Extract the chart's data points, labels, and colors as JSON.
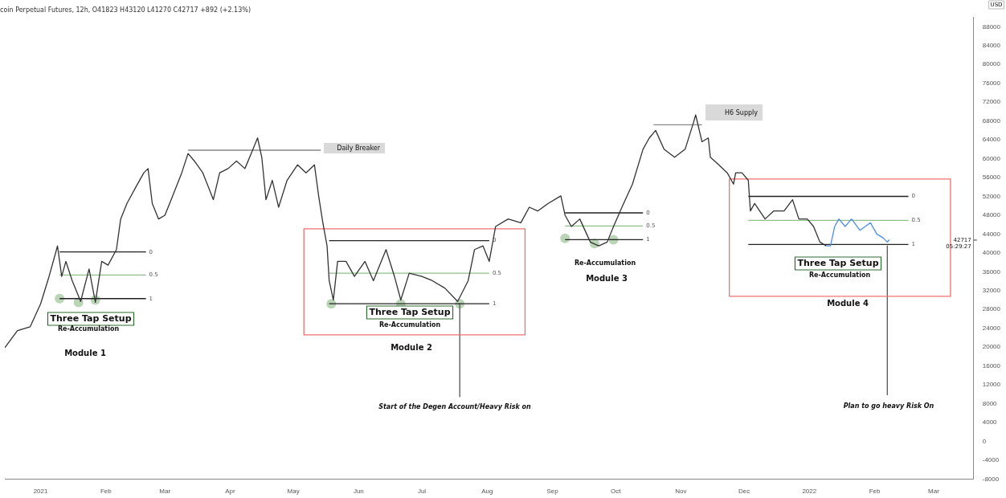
{
  "chart_data": {
    "type": "line",
    "title": "coin Perpetual Futures, 12h, O41823 H43120 L41270 C42717 +892 (+2.13%)",
    "xlim": [
      "2020-12-15",
      "2022-03-20"
    ],
    "xticks": [
      {
        "value": "2021-01-01",
        "label": "2021"
      },
      {
        "value": "2021-02-01",
        "label": "Feb"
      },
      {
        "value": "2021-03-01",
        "label": "Mar"
      },
      {
        "value": "2021-04-01",
        "label": "Apr"
      },
      {
        "value": "2021-05-01",
        "label": "May"
      },
      {
        "value": "2021-06-01",
        "label": "Jun"
      },
      {
        "value": "2021-07-01",
        "label": "Jul"
      },
      {
        "value": "2021-08-01",
        "label": "Aug"
      },
      {
        "value": "2021-09-01",
        "label": "Sep"
      },
      {
        "value": "2021-10-01",
        "label": "Oct"
      },
      {
        "value": "2021-11-01",
        "label": "Nov"
      },
      {
        "value": "2021-12-01",
        "label": "Dec"
      },
      {
        "value": "2022-01-01",
        "label": "2022"
      },
      {
        "value": "2022-02-01",
        "label": "Feb"
      },
      {
        "value": "2022-03-01",
        "label": "Mar"
      }
    ],
    "ylim": [
      -8000,
      90000
    ],
    "yticks": [
      -8000,
      -4000,
      0,
      4000,
      8000,
      12000,
      16000,
      20000,
      24000,
      28000,
      32000,
      36000,
      40000,
      44000,
      48000,
      52000,
      56000,
      60000,
      64000,
      68000,
      72000,
      76000,
      80000,
      84000,
      88000
    ],
    "grid": false,
    "legend": false,
    "marker": "none",
    "line_style": "solid",
    "series": [
      {
        "color": "#333333",
        "x": [
          "2020-12-15",
          "2020-12-21",
          "2020-12-27",
          "2021-01-01",
          "2021-01-05",
          "2021-01-08",
          "2021-01-09",
          "2021-01-11",
          "2021-01-13",
          "2021-01-16",
          "2021-01-20",
          "2021-01-24",
          "2021-01-27",
          "2021-01-30",
          "2021-02-02",
          "2021-02-06",
          "2021-02-08",
          "2021-02-11",
          "2021-02-15",
          "2021-02-19",
          "2021-02-21",
          "2021-02-23",
          "2021-02-26",
          "2021-03-01",
          "2021-03-04",
          "2021-03-09",
          "2021-03-12",
          "2021-03-15",
          "2021-03-19",
          "2021-03-24",
          "2021-03-27",
          "2021-03-31",
          "2021-04-04",
          "2021-04-08",
          "2021-04-11",
          "2021-04-14",
          "2021-04-16",
          "2021-04-18",
          "2021-04-21",
          "2021-04-24",
          "2021-04-28",
          "2021-05-03",
          "2021-05-07",
          "2021-05-11",
          "2021-05-13",
          "2021-05-15",
          "2021-05-17",
          "2021-05-18",
          "2021-05-20",
          "2021-05-22",
          "2021-05-26",
          "2021-05-30",
          "2021-06-04",
          "2021-06-08",
          "2021-06-14",
          "2021-06-18",
          "2021-06-21",
          "2021-06-25",
          "2021-07-01",
          "2021-07-06",
          "2021-07-12",
          "2021-07-18",
          "2021-07-23",
          "2021-07-26",
          "2021-07-30",
          "2021-08-02",
          "2021-08-05",
          "2021-08-11",
          "2021-08-17",
          "2021-08-21",
          "2021-08-25",
          "2021-08-30",
          "2021-09-05",
          "2021-09-07",
          "2021-09-10",
          "2021-09-14",
          "2021-09-19",
          "2021-09-23",
          "2021-09-27",
          "2021-09-30",
          "2021-10-04",
          "2021-10-09",
          "2021-10-14",
          "2021-10-17",
          "2021-10-20",
          "2021-10-24",
          "2021-10-29",
          "2021-11-03",
          "2021-11-07",
          "2021-11-08",
          "2021-11-11",
          "2021-11-14",
          "2021-11-15",
          "2021-11-19",
          "2021-11-23",
          "2021-11-26",
          "2021-11-27",
          "2021-11-30",
          "2021-12-03",
          "2021-12-04",
          "2021-12-06",
          "2021-12-11",
          "2021-12-15",
          "2021-12-20",
          "2021-12-24",
          "2021-12-27",
          "2021-12-31",
          "2022-01-03",
          "2022-01-06",
          "2022-01-09"
        ],
        "values": [
          19900,
          23500,
          24300,
          29200,
          35000,
          39800,
          41500,
          35000,
          38200,
          34100,
          29700,
          36600,
          29500,
          38200,
          37400,
          40700,
          47200,
          50500,
          53800,
          57000,
          57900,
          50500,
          47200,
          48000,
          51300,
          57000,
          61100,
          59500,
          57000,
          51300,
          57000,
          57900,
          59500,
          57900,
          61100,
          64400,
          60300,
          51300,
          55400,
          49700,
          55400,
          58700,
          57000,
          58700,
          52100,
          46400,
          41500,
          34100,
          30000,
          38200,
          38200,
          35000,
          38200,
          34100,
          40700,
          35000,
          30000,
          35700,
          35000,
          34100,
          32500,
          29700,
          34100,
          40700,
          41500,
          38200,
          45600,
          47200,
          46400,
          49700,
          48900,
          50500,
          52100,
          48000,
          45600,
          47200,
          42300,
          41500,
          42300,
          45600,
          49700,
          54600,
          62000,
          64400,
          66000,
          62000,
          60300,
          62000,
          67700,
          69300,
          63600,
          64400,
          60300,
          58700,
          57000,
          54600,
          57000,
          57000,
          55400,
          48900,
          50500,
          47200,
          48900,
          48900,
          51300,
          47200,
          47200,
          45600,
          42300,
          41500
        ]
      },
      {
        "color": "#4a8cf0",
        "x": [
          "2022-01-09",
          "2022-01-11",
          "2022-01-13",
          "2022-01-15",
          "2022-01-18",
          "2022-01-21",
          "2022-01-25",
          "2022-01-30",
          "2022-02-02",
          "2022-02-05",
          "2022-02-07",
          "2022-02-08"
        ],
        "values": [
          41500,
          41500,
          45600,
          47200,
          45600,
          47200,
          44800,
          46400,
          44000,
          43200,
          42300,
          42800
        ]
      },
      {
        "color": "#222222",
        "x": [
          "2021-01-10",
          "2021-02-20"
        ],
        "values": [
          40200,
          40200
        ]
      },
      {
        "color": "#8fbf8a",
        "x": [
          "2021-01-10",
          "2021-02-20"
        ],
        "values": [
          35300,
          35300
        ]
      },
      {
        "color": "#222222",
        "x": [
          "2021-01-10",
          "2021-02-20"
        ],
        "values": [
          30300,
          30300
        ]
      },
      {
        "color": "#222222",
        "x": [
          "2021-05-18",
          "2021-08-02"
        ],
        "values": [
          42600,
          42600
        ]
      },
      {
        "color": "#8fbf8a",
        "x": [
          "2021-05-18",
          "2021-08-02"
        ],
        "values": [
          35700,
          35700
        ]
      },
      {
        "color": "#222222",
        "x": [
          "2021-05-18",
          "2021-08-02"
        ],
        "values": [
          29200,
          29200
        ]
      },
      {
        "color": "#222222",
        "x": [
          "2021-09-07",
          "2021-10-14"
        ],
        "values": [
          48500,
          48500
        ]
      },
      {
        "color": "#8fbf8a",
        "x": [
          "2021-09-07",
          "2021-10-14"
        ],
        "values": [
          45700,
          45700
        ]
      },
      {
        "color": "#222222",
        "x": [
          "2021-09-07",
          "2021-10-14"
        ],
        "values": [
          42800,
          42800
        ]
      },
      {
        "color": "#222222",
        "x": [
          "2021-12-03",
          "2022-02-17"
        ],
        "values": [
          52000,
          52000
        ]
      },
      {
        "color": "#8fbf8a",
        "x": [
          "2021-12-03",
          "2022-02-17"
        ],
        "values": [
          46900,
          46900
        ]
      },
      {
        "color": "#222222",
        "x": [
          "2021-12-03",
          "2022-02-17"
        ],
        "values": [
          41800,
          41800
        ]
      },
      {
        "color": "#888888",
        "x": [
          "2021-03-12",
          "2021-05-14"
        ],
        "values": [
          61800,
          61800
        ]
      },
      {
        "color": "#888888",
        "x": [
          "2021-10-19",
          "2021-11-11"
        ],
        "values": [
          67200,
          67200
        ]
      },
      {
        "color": "#f07070",
        "x": [
          "2021-05-06",
          "2021-08-19"
        ],
        "values": [
          45100,
          45100
        ]
      },
      {
        "color": "#f07070",
        "x": [
          "2021-05-06",
          "2021-08-19"
        ],
        "values": [
          22600,
          22600
        ]
      },
      {
        "color": "#f07070",
        "x": [
          "2021-05-06",
          "2021-05-06"
        ],
        "values": [
          45100,
          22600
        ]
      },
      {
        "color": "#f07070",
        "x": [
          "2021-08-19",
          "2021-08-19"
        ],
        "values": [
          45100,
          22600
        ]
      },
      {
        "color": "#f07070",
        "x": [
          "2021-11-24",
          "2022-03-09"
        ],
        "values": [
          55700,
          55700
        ]
      },
      {
        "color": "#f07070",
        "x": [
          "2021-11-24",
          "2022-03-09"
        ],
        "values": [
          30800,
          30800
        ]
      },
      {
        "color": "#f07070",
        "x": [
          "2021-11-24",
          "2021-11-24"
        ],
        "values": [
          55700,
          30800
        ]
      },
      {
        "color": "#f07070",
        "x": [
          "2022-03-09",
          "2022-03-09"
        ],
        "values": [
          55700,
          30800
        ]
      },
      {
        "color": "#555555",
        "x": [
          "2021-07-19",
          "2021-07-19"
        ],
        "values": [
          29200,
          9500
        ]
      },
      {
        "color": "#555555",
        "x": [
          "2022-02-07",
          "2022-02-07"
        ],
        "values": [
          41500,
          9900
        ]
      },
      {
        "type": "scatter",
        "marker": "circle",
        "color": "#a9c9a4",
        "x": [
          "2021-01-10",
          "2021-01-19",
          "2021-01-27",
          "2021-05-19",
          "2021-06-21",
          "2021-07-19",
          "2021-09-07",
          "2021-09-21",
          "2021-09-30"
        ],
        "values": [
          30300,
          29500,
          30000,
          29200,
          29200,
          29200,
          43100,
          42000,
          42800
        ]
      }
    ],
    "ref_lines": [
      {
        "axis": "y",
        "value": 42717,
        "label": "42717\n05:29:27"
      }
    ],
    "annotations": [
      "Three Tap Setup",
      "Re-Accumulation",
      "Module 1",
      "Three Tap Setup",
      "Re-Accumulation",
      "Module 2",
      "Start of the Degen Account/Heavy Risk on",
      "Re-Accumulation",
      "Module 3",
      "Three Tap Setup",
      "Re-Accumulation",
      "Module 4",
      "Plan to go heavy Risk On",
      "Daily Breaker",
      "H6 Supply",
      {
        "text": "0",
        "x": "2021-02-20",
        "y": 40200
      },
      {
        "text": "0.5",
        "x": "2021-02-20",
        "y": 35300
      },
      {
        "text": "1",
        "x": "2021-02-20",
        "y": 30300
      },
      {
        "text": "0",
        "x": "2021-08-02",
        "y": 42600
      },
      {
        "text": "0.5",
        "x": "2021-08-02",
        "y": 35700
      },
      {
        "text": "1",
        "x": "2021-08-02",
        "y": 29200
      },
      {
        "text": "0",
        "x": "2021-10-14",
        "y": 48500
      },
      {
        "text": "0.5",
        "x": "2021-10-14",
        "y": 45700
      },
      {
        "text": "1",
        "x": "2021-10-14",
        "y": 42800
      },
      {
        "text": "0",
        "x": "2022-02-17",
        "y": 52000
      },
      {
        "text": "0.5",
        "x": "2022-02-17",
        "y": 46900
      },
      {
        "text": "1",
        "x": "2022-02-17",
        "y": 41800
      },
      "USD"
    ]
  }
}
